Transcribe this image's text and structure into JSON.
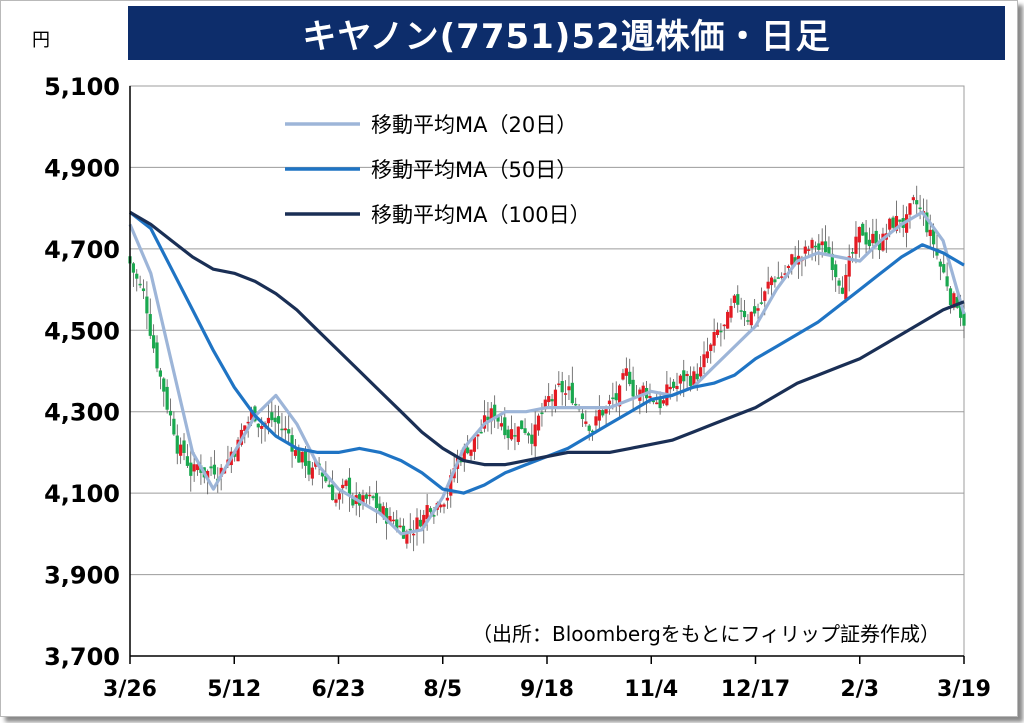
{
  "title": "キヤノン(7751)52週株価・日足",
  "unit": "円",
  "source": "（出所：Bloombergをもとにフィリップ証券作成）",
  "colors": {
    "up": "#e31b23",
    "down": "#1aa84f",
    "ma20": "#9db5d8",
    "ma50": "#1f74c4",
    "ma100": "#1a2f55",
    "title_bg": "#0d2d6b"
  },
  "chart_data": {
    "type": "candlestick",
    "title": "キヤノン(7751)52週株価・日足",
    "ylabel": "円",
    "ylim": [
      3700,
      5100
    ],
    "yticks": [
      3700,
      3900,
      4100,
      4300,
      4500,
      4700,
      4900,
      5100
    ],
    "ytick_labels": [
      "3,700",
      "3,900",
      "4,100",
      "4,300",
      "4,500",
      "4,700",
      "4,900",
      "5,100"
    ],
    "x_range": [
      0,
      40
    ],
    "xticks": [
      0,
      5,
      10,
      15,
      20,
      25,
      30,
      35,
      40
    ],
    "xtick_labels": [
      "3/26",
      "5/12",
      "6/23",
      "8/5",
      "9/18",
      "11/4",
      "12/17",
      "2/3",
      "3/19"
    ],
    "grid": "horizontal",
    "legend_position": "top-center",
    "series": [
      {
        "name": "移動平均MA（20日）",
        "key": "ma20",
        "x": [
          0,
          1,
          2,
          3,
          4,
          5,
          6,
          7,
          8,
          9,
          10,
          11,
          12,
          13,
          14,
          15,
          16,
          17,
          18,
          19,
          20,
          21,
          22,
          23,
          24,
          25,
          26,
          27,
          28,
          29,
          30,
          31,
          32,
          33,
          34,
          35,
          36,
          37,
          38,
          39,
          40
        ],
        "values": [
          4760,
          4640,
          4420,
          4200,
          4110,
          4200,
          4290,
          4340,
          4270,
          4170,
          4110,
          4080,
          4050,
          4000,
          4010,
          4090,
          4210,
          4270,
          4300,
          4300,
          4310,
          4310,
          4310,
          4310,
          4330,
          4350,
          4340,
          4360,
          4410,
          4460,
          4510,
          4600,
          4670,
          4690,
          4680,
          4670,
          4720,
          4760,
          4790,
          4720,
          4540
        ]
      },
      {
        "name": "移動平均MA（50日）",
        "key": "ma50",
        "x": [
          0,
          1,
          2,
          3,
          4,
          5,
          6,
          7,
          8,
          9,
          10,
          11,
          12,
          13,
          14,
          15,
          16,
          17,
          18,
          19,
          20,
          21,
          22,
          23,
          24,
          25,
          26,
          27,
          28,
          29,
          30,
          31,
          32,
          33,
          34,
          35,
          36,
          37,
          38,
          39,
          40
        ],
        "values": [
          4790,
          4750,
          4650,
          4550,
          4450,
          4360,
          4290,
          4240,
          4210,
          4200,
          4200,
          4210,
          4200,
          4180,
          4150,
          4110,
          4100,
          4120,
          4150,
          4170,
          4190,
          4210,
          4240,
          4270,
          4300,
          4330,
          4340,
          4360,
          4370,
          4390,
          4430,
          4460,
          4490,
          4520,
          4560,
          4600,
          4640,
          4680,
          4710,
          4690,
          4660
        ]
      },
      {
        "name": "移動平均MA（100日）",
        "key": "ma100",
        "x": [
          0,
          1,
          2,
          3,
          4,
          5,
          6,
          7,
          8,
          9,
          10,
          11,
          12,
          13,
          14,
          15,
          16,
          17,
          18,
          19,
          20,
          21,
          22,
          23,
          24,
          25,
          26,
          27,
          28,
          29,
          30,
          31,
          32,
          33,
          34,
          35,
          36,
          37,
          38,
          39,
          40
        ],
        "values": [
          4790,
          4760,
          4720,
          4680,
          4650,
          4640,
          4620,
          4590,
          4550,
          4500,
          4450,
          4400,
          4350,
          4300,
          4250,
          4210,
          4180,
          4170,
          4170,
          4180,
          4190,
          4200,
          4200,
          4200,
          4210,
          4220,
          4230,
          4250,
          4270,
          4290,
          4310,
          4340,
          4370,
          4390,
          4410,
          4430,
          4460,
          4490,
          4520,
          4550,
          4570
        ]
      }
    ]
  }
}
